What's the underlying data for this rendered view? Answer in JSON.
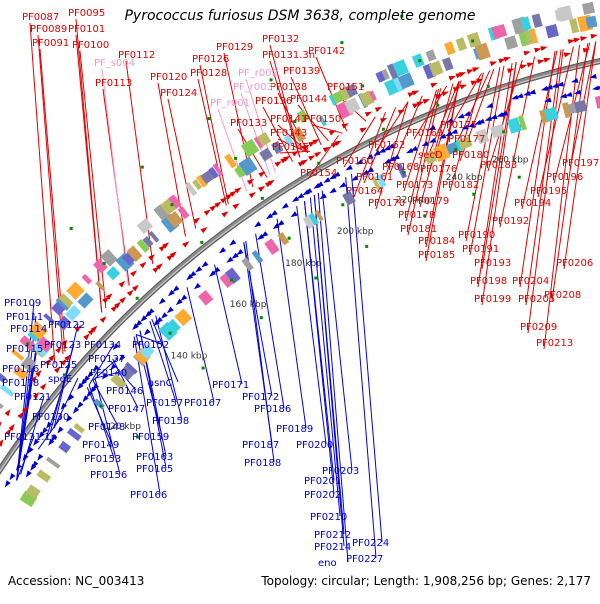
{
  "title": "Pyrococcus furiosus DSM 3638, complete genome",
  "footer": {
    "accession": "Accession: NC_003413",
    "summary": "Topology: circular; Length: 1,908,256 bp; Genes: 2,177"
  },
  "colors": {
    "forward": "#dd0000",
    "reverse": "#0000cc",
    "rna": "#ee88cc",
    "backbone": "#8a8a8a",
    "tick": "#008800",
    "line_red": "#e00000",
    "line_blue": "#0000dd",
    "line_pink": "#ff99cc"
  },
  "kbp_ticks": [
    "120 kbp",
    "140 kbp",
    "160 kbp",
    "180 kbp",
    "200 kbp",
    "220 kbp",
    "240 kbp",
    "260 kbp"
  ],
  "forward_labels": [
    "PF0087",
    "PF0089",
    "PF0091",
    "PF0095",
    "PF0101",
    "PF0100",
    "PF0112",
    "PF0113",
    "PF0120",
    "PF0124",
    "PF0126",
    "PF0128",
    "PF0129",
    "PF0132",
    "PF0131.3n",
    "PF0142",
    "PF0139",
    "PF0138",
    "PF0136",
    "PF0144",
    "PF0133",
    "PF0141",
    "PF0150",
    "PF0151",
    "PF0143",
    "PF0145",
    "PF0154",
    "PF0160",
    "PF0162",
    "PF0161",
    "PF0164",
    "PF0168",
    "PF0169",
    "PF0177",
    "secD",
    "PF0175",
    "PF0176",
    "PF0173",
    "PF0170",
    "PF0180",
    "PF0183",
    "PF0179",
    "PF0182",
    "PF0178",
    "PF0181",
    "PF0184",
    "PF0185",
    "PF0190",
    "PF0191",
    "PF0193",
    "PF0192",
    "PF0194",
    "PF0195",
    "PF0196",
    "PF0197",
    "PF0198",
    "PF0199",
    "PF0204",
    "PF0205",
    "PF0206",
    "PF0208",
    "PF0209",
    "PF0213"
  ],
  "rna_labels": [
    "PF_s004",
    "PF_r002",
    "PF_r003",
    "PF_r001"
  ],
  "reverse_labels": [
    "PF0109",
    "PF0111",
    "PF0114",
    "PF0115",
    "PF0116",
    "PF0118",
    "PF0121",
    "PF0122",
    "PF0123",
    "PF0125",
    "speE",
    "PF0130",
    "PF0131.1n",
    "PF0134",
    "PF0137",
    "PF0140",
    "PF0146",
    "PF0147",
    "PF0148",
    "PF0149",
    "PF0152",
    "asnC",
    "PF0153",
    "PF0157",
    "PF0158",
    "PF0159",
    "PF0156",
    "PF0163",
    "PF0165",
    "PF0166",
    "PF0167",
    "PF0171",
    "PF0172",
    "PF0186",
    "PF0187",
    "PF0188",
    "PF0189",
    "PF0200",
    "PF0201",
    "PF0202",
    "PF0203",
    "PF0210",
    "PF0212",
    "PF0214",
    "PF0224",
    "eno",
    "PF0227"
  ]
}
